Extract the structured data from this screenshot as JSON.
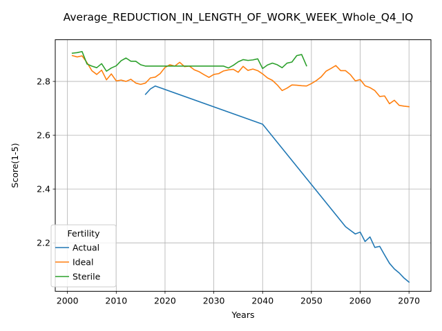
{
  "chart_data": {
    "type": "line",
    "title": "Average_REDUCTION_IN_LENGTH_OF_WORK_WEEK_Whole_Q4_IQ",
    "xlabel": "Years",
    "ylabel": "Score(1-5)",
    "xlim": [
      1997.5,
      2074.5
    ],
    "ylim": [
      2.02,
      2.955
    ],
    "x_ticks": [
      2000,
      2010,
      2020,
      2030,
      2040,
      2050,
      2060,
      2070
    ],
    "y_ticks": [
      2.2,
      2.4,
      2.6,
      2.8
    ],
    "y_tick_labels": [
      "2.2",
      "2.4",
      "2.6",
      "2.8"
    ],
    "grid": true,
    "legend": {
      "title": "Fertility",
      "placement": "lower-left"
    },
    "series": [
      {
        "name": "Actual",
        "color": "#1f77b4",
        "x": [
          2016,
          2017,
          2018,
          2040,
          2057,
          2059,
          2060,
          2061,
          2062,
          2063,
          2064,
          2065,
          2066,
          2067,
          2068,
          2069,
          2070
        ],
        "y": [
          2.752,
          2.772,
          2.783,
          2.641,
          2.26,
          2.233,
          2.24,
          2.205,
          2.222,
          2.183,
          2.187,
          2.155,
          2.124,
          2.103,
          2.088,
          2.069,
          2.054
        ]
      },
      {
        "name": "Ideal",
        "color": "#ff7f0e",
        "x": [
          2001,
          2002,
          2003,
          2004,
          2005,
          2006,
          2007,
          2008,
          2009,
          2010,
          2011,
          2012,
          2013,
          2014,
          2015,
          2016,
          2017,
          2018,
          2019,
          2020,
          2021,
          2022,
          2023,
          2024,
          2025,
          2026,
          2027,
          2028,
          2029,
          2030,
          2031,
          2032,
          2033,
          2034,
          2035,
          2036,
          2037,
          2038,
          2039,
          2040,
          2041,
          2042,
          2043,
          2044,
          2045,
          2046,
          2047,
          2048,
          2049,
          2050,
          2051,
          2052,
          2053,
          2054,
          2055,
          2056,
          2057,
          2058,
          2059,
          2060,
          2061,
          2062,
          2063,
          2064,
          2065,
          2066,
          2067,
          2068,
          2069,
          2070
        ],
        "y": [
          2.896,
          2.891,
          2.895,
          2.87,
          2.84,
          2.826,
          2.842,
          2.806,
          2.828,
          2.802,
          2.805,
          2.8,
          2.808,
          2.794,
          2.789,
          2.794,
          2.813,
          2.816,
          2.829,
          2.852,
          2.862,
          2.857,
          2.871,
          2.855,
          2.857,
          2.843,
          2.836,
          2.825,
          2.815,
          2.826,
          2.829,
          2.839,
          2.843,
          2.845,
          2.834,
          2.856,
          2.841,
          2.846,
          2.84,
          2.828,
          2.813,
          2.804,
          2.787,
          2.766,
          2.775,
          2.787,
          2.786,
          2.784,
          2.783,
          2.792,
          2.803,
          2.817,
          2.838,
          2.848,
          2.859,
          2.84,
          2.84,
          2.825,
          2.802,
          2.807,
          2.784,
          2.777,
          2.766,
          2.744,
          2.746,
          2.717,
          2.73,
          2.711,
          2.708,
          2.706
        ]
      },
      {
        "name": "Sterile",
        "color": "#2ca02c",
        "x": [
          2001,
          2002,
          2003,
          2004,
          2005,
          2006,
          2007,
          2008,
          2009,
          2010,
          2011,
          2012,
          2013,
          2014,
          2015,
          2016,
          2017,
          2018,
          2019,
          2020,
          2021,
          2022,
          2023,
          2024,
          2025,
          2026,
          2027,
          2028,
          2029,
          2030,
          2031,
          2032,
          2033,
          2034,
          2035,
          2036,
          2037,
          2038,
          2039,
          2040,
          2041,
          2042,
          2043,
          2044,
          2045,
          2046,
          2047,
          2048,
          2049
        ],
        "y": [
          2.905,
          2.907,
          2.911,
          2.865,
          2.857,
          2.851,
          2.866,
          2.838,
          2.85,
          2.858,
          2.877,
          2.887,
          2.875,
          2.875,
          2.862,
          2.857,
          2.857,
          2.857,
          2.857,
          2.857,
          2.857,
          2.857,
          2.857,
          2.857,
          2.857,
          2.857,
          2.857,
          2.857,
          2.857,
          2.857,
          2.857,
          2.857,
          2.85,
          2.86,
          2.873,
          2.881,
          2.878,
          2.88,
          2.884,
          2.848,
          2.861,
          2.868,
          2.862,
          2.851,
          2.868,
          2.872,
          2.896,
          2.9,
          2.858
        ]
      }
    ]
  }
}
